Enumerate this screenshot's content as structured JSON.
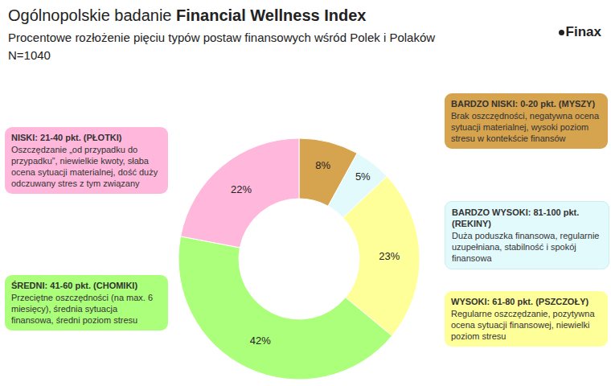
{
  "chart_data": {
    "type": "pie",
    "title": "Ogólnopolskie badanie Financial Wellness Index",
    "title_bold_part": "Financial Wellness Index",
    "subtitle": "Procentowe rozłożenie pięciu typów postaw finansowych wśród Polek i Polaków",
    "sample": "N=1040",
    "logo": "Finax",
    "categories": [
      "BARDZO NISKI: 0-20 pkt. (MYSZY)",
      "BARDZO WYSOKI: 81-100 pkt. (REKINY)",
      "WYSOKI: 61-80 pkt. (PSZCZOŁY)",
      "ŚREDNI: 41-60 pkt. (CHOMIKI)",
      "NISKI: 21-40 pkt. (PŁOTKI)"
    ],
    "descriptions": [
      "Brak oszczędności, negatywna ocena sytuacji materialnej, wysoki poziom stresu w kontekście finansów",
      "Duża poduszka finansowa, regularnie uzupełniana, stabilność i spokój finansowa",
      "Regularne oszczędzanie, pozytywna ocena sytuacji finansowej, niewielki poziom stresu",
      "Przeciętne oszczędności (na max. 6 miesięcy), średnia sytuacja finansowa, średni poziom stresu",
      "Oszczędzanie „od przypadku do przypadku”, niewielkie kwoty, słaba ocena sytuacji materialnej, dość duży odczuwany stres z tym związany"
    ],
    "values": [
      8,
      5,
      23,
      42,
      22
    ],
    "value_labels": [
      "8%",
      "5%",
      "23%",
      "42%",
      "22%"
    ],
    "colors": [
      "#d6a34e",
      "#e3fafd",
      "#ffff99",
      "#acff7a",
      "#ffb8dc"
    ],
    "data_labels": true
  }
}
